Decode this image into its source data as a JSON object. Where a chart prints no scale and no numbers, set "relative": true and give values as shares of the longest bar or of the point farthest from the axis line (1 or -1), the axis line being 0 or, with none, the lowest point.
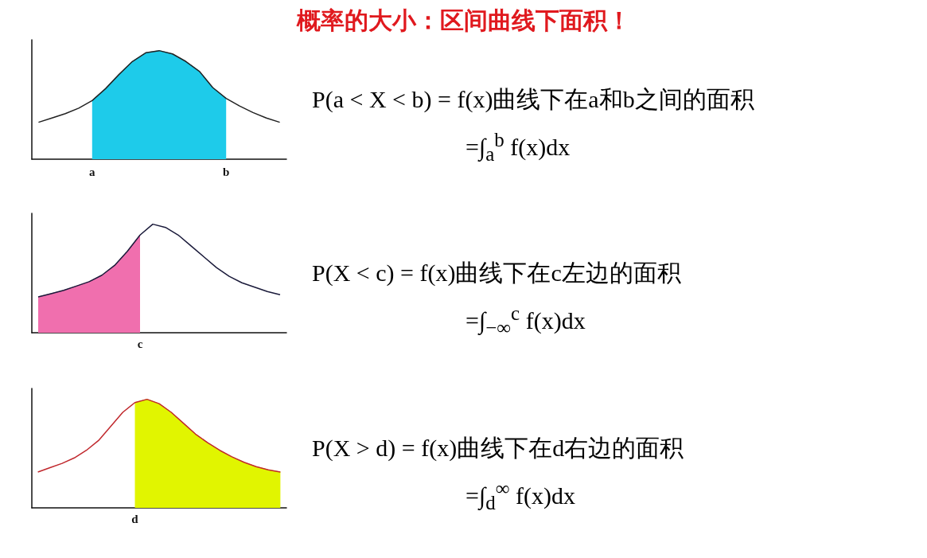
{
  "chart_data": [
    {
      "type": "area",
      "title": "概率的大小：区间曲线下面积！",
      "relative": true,
      "categories": [
        null,
        null,
        null,
        null,
        "a",
        null,
        null,
        null,
        null,
        null,
        null,
        null,
        null,
        null,
        "b",
        null,
        null,
        null,
        null
      ],
      "series": [
        {
          "type": "line",
          "color": "#222222",
          "values": [
            0.34,
            0.38,
            0.42,
            0.47,
            0.54,
            0.65,
            0.78,
            0.9,
            0.98,
            1.0,
            0.97,
            0.9,
            0.81,
            0.66,
            0.56,
            0.49,
            0.43,
            0.38,
            0.34
          ]
        },
        {
          "type": "area",
          "color": "#1ecbea",
          "values": [
            null,
            null,
            null,
            null,
            0.54,
            0.65,
            0.78,
            0.9,
            0.98,
            1.0,
            0.97,
            0.9,
            0.81,
            0.66,
            0.56,
            null,
            null,
            null,
            null
          ]
        }
      ],
      "annotations": [
        "P(a < X < b) = f(x)曲线下在a和b之间的面积",
        "=∫$_{a}$$^{b}$ f(x)dx"
      ]
    },
    {
      "type": "area",
      "relative": true,
      "categories": [
        null,
        null,
        null,
        null,
        null,
        null,
        null,
        null,
        null,
        null,
        null,
        null,
        null,
        null,
        null,
        null,
        null,
        null,
        null,
        null
      ],
      "series": [
        {
          "type": "line",
          "color": "#1a1a3a",
          "values": [
            0.33,
            0.36,
            0.39,
            0.43,
            0.47,
            0.53,
            0.62,
            0.75,
            0.9,
            1.0,
            0.97,
            0.9,
            0.8,
            0.7,
            0.6,
            0.52,
            0.46,
            0.42,
            0.38,
            0.35
          ]
        },
        {
          "type": "area",
          "color": "#f06fae",
          "values": [
            0.33,
            0.36,
            0.39,
            0.43,
            0.47,
            0.53,
            0.62,
            0.75,
            0.9,
            null,
            null,
            null,
            null,
            null,
            null,
            null,
            null,
            null,
            null,
            null
          ]
        }
      ],
      "annotations": [
        "P(X < c) = f(x)曲线下在c左边的面积",
        "=∫$_{−∞}$$^{c}$ f(x)dx",
        "c"
      ]
    },
    {
      "type": "area",
      "relative": true,
      "categories": [
        null,
        null,
        null,
        null,
        null,
        null,
        null,
        null,
        null,
        null,
        null,
        null,
        null,
        null,
        null,
        null,
        null,
        null,
        null,
        null,
        null
      ],
      "series": [
        {
          "type": "line",
          "color": "#c0282d",
          "values": [
            0.33,
            0.37,
            0.41,
            0.46,
            0.53,
            0.62,
            0.75,
            0.88,
            0.97,
            1.0,
            0.96,
            0.88,
            0.78,
            0.68,
            0.6,
            0.53,
            0.47,
            0.42,
            0.38,
            0.35,
            0.33
          ]
        },
        {
          "type": "area",
          "color": "#e1f500",
          "values": [
            null,
            null,
            null,
            null,
            null,
            null,
            null,
            null,
            0.97,
            1.0,
            0.96,
            0.88,
            0.78,
            0.68,
            0.6,
            0.53,
            0.47,
            0.42,
            0.38,
            0.35,
            0.33
          ]
        }
      ],
      "annotations": [
        "P(X > d) = f(x)曲线下在d右边的面积",
        "=∫$_{d}$$^{∞}$ f(x)dx",
        "d"
      ]
    }
  ]
}
